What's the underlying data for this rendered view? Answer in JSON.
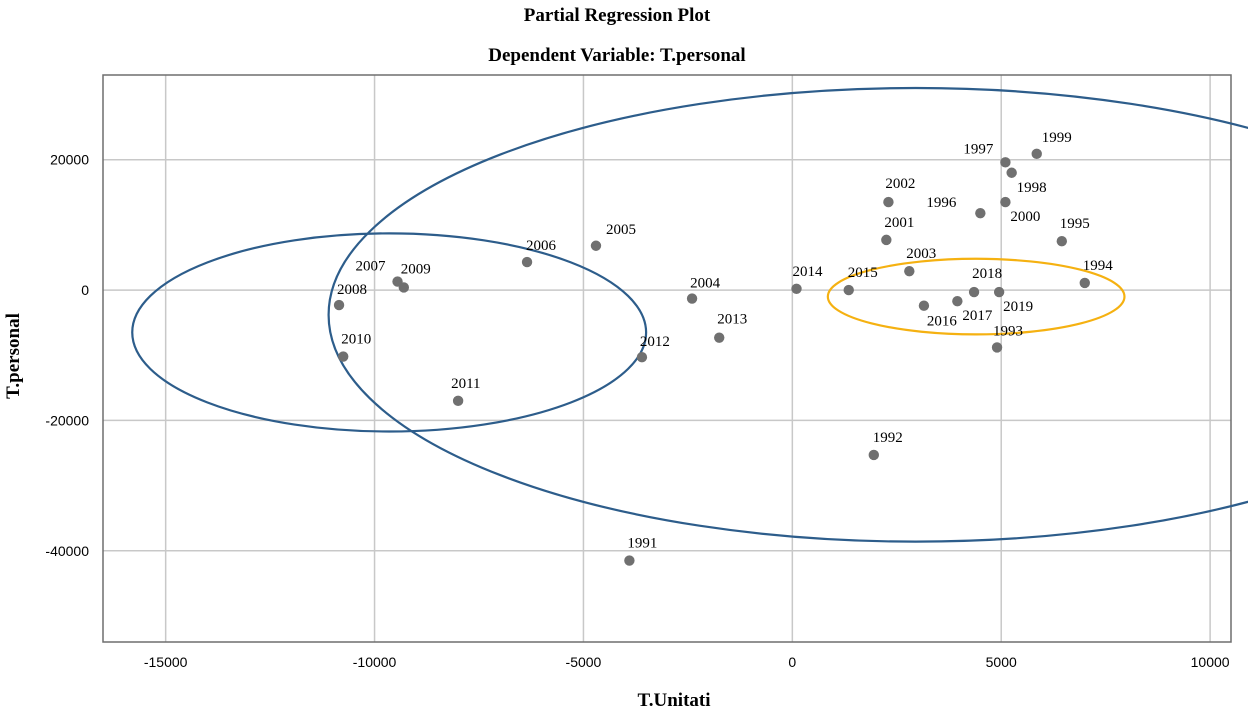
{
  "chart_data": {
    "type": "scatter",
    "title": "Partial Regression Plot",
    "subtitle": "Dependent Variable: T.personal",
    "xlabel": "T.Unitati",
    "ylabel": "T.personal",
    "xlim": [
      -16500,
      10500
    ],
    "ylim": [
      -54000,
      33000
    ],
    "xticks": [
      -15000,
      -10000,
      -5000,
      0,
      5000,
      10000
    ],
    "yticks": [
      20000,
      0,
      -20000,
      -40000
    ],
    "xtick_labels": [
      "-15000",
      "-10000",
      "-5000",
      "0",
      "5000",
      "10000"
    ],
    "ytick_labels": [
      "20000",
      "0",
      "-20000",
      "-40000"
    ],
    "grid": true,
    "point_color": "#707070",
    "points": [
      {
        "label": "1991",
        "x": -3900,
        "y": -41500
      },
      {
        "label": "1992",
        "x": 1950,
        "y": -25300
      },
      {
        "label": "1993",
        "x": 4900,
        "y": -8800
      },
      {
        "label": "1994",
        "x": 7000,
        "y": 1100
      },
      {
        "label": "1995",
        "x": 6450,
        "y": 7500
      },
      {
        "label": "1996",
        "x": 4500,
        "y": 11800
      },
      {
        "label": "1997",
        "x": 5100,
        "y": 19600
      },
      {
        "label": "1998",
        "x": 5250,
        "y": 18000
      },
      {
        "label": "1999",
        "x": 5850,
        "y": 20900
      },
      {
        "label": "2000",
        "x": 5100,
        "y": 13500
      },
      {
        "label": "2001",
        "x": 2250,
        "y": 7700
      },
      {
        "label": "2002",
        "x": 2300,
        "y": 13500
      },
      {
        "label": "2003",
        "x": 2800,
        "y": 2900
      },
      {
        "label": "2004",
        "x": -2400,
        "y": -1300
      },
      {
        "label": "2005",
        "x": -4700,
        "y": 6800
      },
      {
        "label": "2006",
        "x": -6350,
        "y": 4300
      },
      {
        "label": "2007",
        "x": -9450,
        "y": 1300
      },
      {
        "label": "2008",
        "x": -10850,
        "y": -2300
      },
      {
        "label": "2009",
        "x": -9300,
        "y": 400
      },
      {
        "label": "2010",
        "x": -10750,
        "y": -10200
      },
      {
        "label": "2011",
        "x": -8000,
        "y": -17000
      },
      {
        "label": "2012",
        "x": -3600,
        "y": -10300
      },
      {
        "label": "2013",
        "x": -1750,
        "y": -7300
      },
      {
        "label": "2014",
        "x": 100,
        "y": 200
      },
      {
        "label": "2015",
        "x": 1350,
        "y": 0
      },
      {
        "label": "2016",
        "x": 3150,
        "y": -2400
      },
      {
        "label": "2017",
        "x": 3950,
        "y": -1700
      },
      {
        "label": "2018",
        "x": 4350,
        "y": -300
      },
      {
        "label": "2019",
        "x": 4950,
        "y": -300
      }
    ],
    "annotations": [
      {
        "shape": "ellipse",
        "color": "#2d5d8b",
        "cx": -9650,
        "cy": -6500,
        "rx": 6150,
        "ry": 15200
      },
      {
        "shape": "ellipse",
        "color": "#2d5d8b",
        "cx": 2950,
        "cy": -3800,
        "rx": 14050,
        "ry": 34800
      },
      {
        "shape": "ellipse",
        "color": "#f5b111",
        "cx": 4400,
        "cy": -1000,
        "rx": 3550,
        "ry": 5800
      }
    ]
  }
}
